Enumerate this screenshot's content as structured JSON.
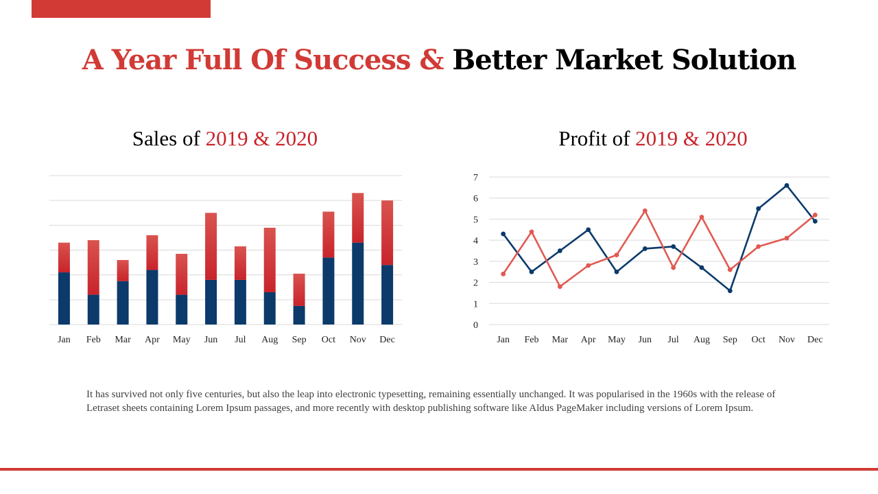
{
  "slide": {
    "title_part1": "A Year Full Of Success &",
    "title_part2": "Better Market Solution",
    "body": "It has survived not only five centuries, but also the leap into electronic typesetting, remaining essentially unchanged. It was popularised in the 1960s with the release of Letraset sheets containing Lorem Ipsum passages, and more recently with desktop publishing software like Aldus PageMaker including versions of Lorem Ipsum.",
    "colors": {
      "accent_red": "#d13a35",
      "navy": "#0b3a6b",
      "line_red": "#e05a52"
    }
  },
  "chart_data": [
    {
      "type": "bar",
      "stacked": true,
      "title_prefix": "Sales of",
      "title_highlight": "2019 & 2020",
      "categories": [
        "Jan",
        "Feb",
        "Mar",
        "Apr",
        "May",
        "Jun",
        "Jul",
        "Aug",
        "Sep",
        "Oct",
        "Nov",
        "Dec"
      ],
      "series": [
        {
          "values": [
            2.1,
            1.2,
            1.75,
            2.2,
            1.2,
            1.8,
            1.8,
            1.3,
            0.75,
            2.7,
            3.3,
            2.4
          ]
        },
        {
          "values": [
            1.2,
            2.2,
            0.85,
            1.4,
            1.65,
            2.7,
            1.35,
            2.6,
            1.3,
            1.85,
            2.0,
            2.6
          ]
        }
      ],
      "ylim": [
        0,
        6
      ],
      "grid": true,
      "axis_labels_y": false
    },
    {
      "type": "line",
      "title_prefix": "Profit of",
      "title_highlight": "2019 & 2020",
      "categories": [
        "Jan",
        "Feb",
        "Mar",
        "Apr",
        "May",
        "Jun",
        "Jul",
        "Aug",
        "Sep",
        "Oct",
        "Nov",
        "Dec"
      ],
      "series": [
        {
          "values": [
            4.3,
            2.5,
            3.5,
            4.5,
            2.5,
            3.6,
            3.7,
            2.7,
            1.6,
            5.5,
            6.6,
            4.9
          ]
        },
        {
          "values": [
            2.4,
            4.4,
            1.8,
            2.8,
            3.3,
            5.4,
            2.7,
            5.1,
            2.6,
            3.7,
            4.1,
            5.2
          ]
        }
      ],
      "yticks": [
        0,
        1,
        2,
        3,
        4,
        5,
        6,
        7
      ],
      "ylim": [
        0,
        7
      ],
      "grid": true
    }
  ]
}
